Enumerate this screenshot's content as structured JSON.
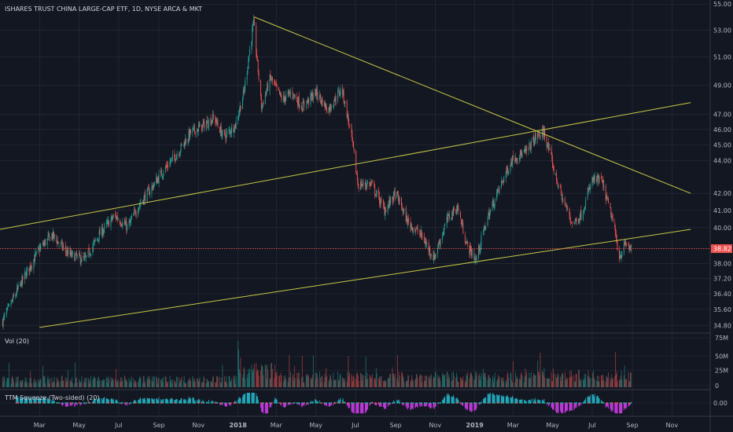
{
  "header": {
    "title": "ISHARES TRUST CHINA LARGE-CAP ETF, 1D, NYSE ARCA & MKT"
  },
  "panes": {
    "volume": {
      "label": "Vol (20)",
      "ticks": [
        "75M",
        "50M",
        "25M",
        "0"
      ]
    },
    "squeeze": {
      "label": "TTM Squeeze (Two-sided) (20)",
      "ticks": [
        "0.00"
      ]
    }
  },
  "price_axis": {
    "ticks": [
      "55.00",
      "53.00",
      "51.00",
      "49.00",
      "47.00",
      "46.00",
      "45.00",
      "44.00",
      "42.00",
      "41.00",
      "40.00",
      "38.00",
      "37.20",
      "36.40",
      "35.60",
      "34.80"
    ],
    "last_price": "38.82"
  },
  "time_axis": {
    "labels": [
      "Mar",
      "May",
      "Jul",
      "Sep",
      "Nov",
      "2018",
      "Mar",
      "May",
      "Jul",
      "Sep",
      "Nov",
      "2019",
      "Mar",
      "May",
      "Jul",
      "Sep",
      "Nov"
    ]
  },
  "colors": {
    "background": "#131722",
    "grid": "#2a2e39",
    "up": "#26a69a",
    "down": "#ef5350",
    "trendline": "#c8c846",
    "last_price": "#ef5350",
    "squeeze_pos": "#26c6da",
    "squeeze_neg": "#e040fb",
    "squeeze_dot_on": "#26a69a",
    "squeeze_dot_off": "#ef5350"
  },
  "chart_data": {
    "type": "candlestick",
    "symbol": "ISHARES TRUST CHINA LARGE-CAP ETF",
    "interval": "1D",
    "exchange": "NYSE ARCA & MKT",
    "ylim": [
      34.5,
      55.2
    ],
    "log_scale": true,
    "grid": true,
    "price_path": [
      [
        "2017-01-03",
        35.0
      ],
      [
        "2017-02-01",
        37.0
      ],
      [
        "2017-03-01",
        38.8
      ],
      [
        "2017-03-20",
        39.6
      ],
      [
        "2017-04-15",
        38.5
      ],
      [
        "2017-05-10",
        38.2
      ],
      [
        "2017-06-01",
        39.6
      ],
      [
        "2017-06-25",
        40.7
      ],
      [
        "2017-07-15",
        40.0
      ],
      [
        "2017-08-01",
        41.3
      ],
      [
        "2017-08-20",
        42.3
      ],
      [
        "2017-09-10",
        43.5
      ],
      [
        "2017-09-30",
        44.5
      ],
      [
        "2017-10-20",
        45.8
      ],
      [
        "2017-11-10",
        46.3
      ],
      [
        "2017-11-25",
        46.8
      ],
      [
        "2017-12-10",
        45.5
      ],
      [
        "2017-12-28",
        46.3
      ],
      [
        "2018-01-10",
        48.5
      ],
      [
        "2018-01-25",
        53.5
      ],
      [
        "2018-02-06",
        47.5
      ],
      [
        "2018-02-20",
        49.5
      ],
      [
        "2018-03-10",
        48.0
      ],
      [
        "2018-03-25",
        48.5
      ],
      [
        "2018-04-10",
        47.5
      ],
      [
        "2018-05-01",
        48.5
      ],
      [
        "2018-05-20",
        47.3
      ],
      [
        "2018-06-10",
        48.8
      ],
      [
        "2018-06-25",
        45.5
      ],
      [
        "2018-07-05",
        42.5
      ],
      [
        "2018-07-25",
        42.6
      ],
      [
        "2018-08-15",
        41.0
      ],
      [
        "2018-09-01",
        42.0
      ],
      [
        "2018-09-20",
        40.3
      ],
      [
        "2018-10-10",
        39.6
      ],
      [
        "2018-10-30",
        38.3
      ],
      [
        "2018-11-20",
        40.5
      ],
      [
        "2018-12-05",
        41.2
      ],
      [
        "2018-12-20",
        39.0
      ],
      [
        "2019-01-03",
        38.2
      ],
      [
        "2019-01-20",
        40.5
      ],
      [
        "2019-02-10",
        42.5
      ],
      [
        "2019-03-01",
        44.2
      ],
      [
        "2019-03-20",
        44.5
      ],
      [
        "2019-04-05",
        45.5
      ],
      [
        "2019-04-18",
        45.8
      ],
      [
        "2019-05-06",
        43.0
      ],
      [
        "2019-05-15",
        41.8
      ],
      [
        "2019-06-01",
        40.2
      ],
      [
        "2019-06-15",
        40.8
      ],
      [
        "2019-07-01",
        42.8
      ],
      [
        "2019-07-15",
        42.8
      ],
      [
        "2019-08-01",
        40.5
      ],
      [
        "2019-08-12",
        38.4
      ],
      [
        "2019-08-22",
        39.1
      ],
      [
        "2019-08-30",
        38.8
      ]
    ],
    "trendlines": [
      {
        "from": [
          "2018-01-26",
          54.0
        ],
        "to": [
          "2019-11-30",
          42.0
        ]
      },
      {
        "from": [
          "2016-12-30",
          39.9
        ],
        "to": [
          "2019-11-30",
          47.8
        ]
      },
      {
        "from": [
          "2017-03-01",
          34.7
        ],
        "to": [
          "2019-11-30",
          39.9
        ]
      }
    ],
    "last_price": 38.82,
    "volume": {
      "label": "Vol (20)",
      "ylim": [
        0,
        78
      ]
    },
    "squeeze": {
      "label": "TTM Squeeze (Two-sided) (20)"
    }
  }
}
